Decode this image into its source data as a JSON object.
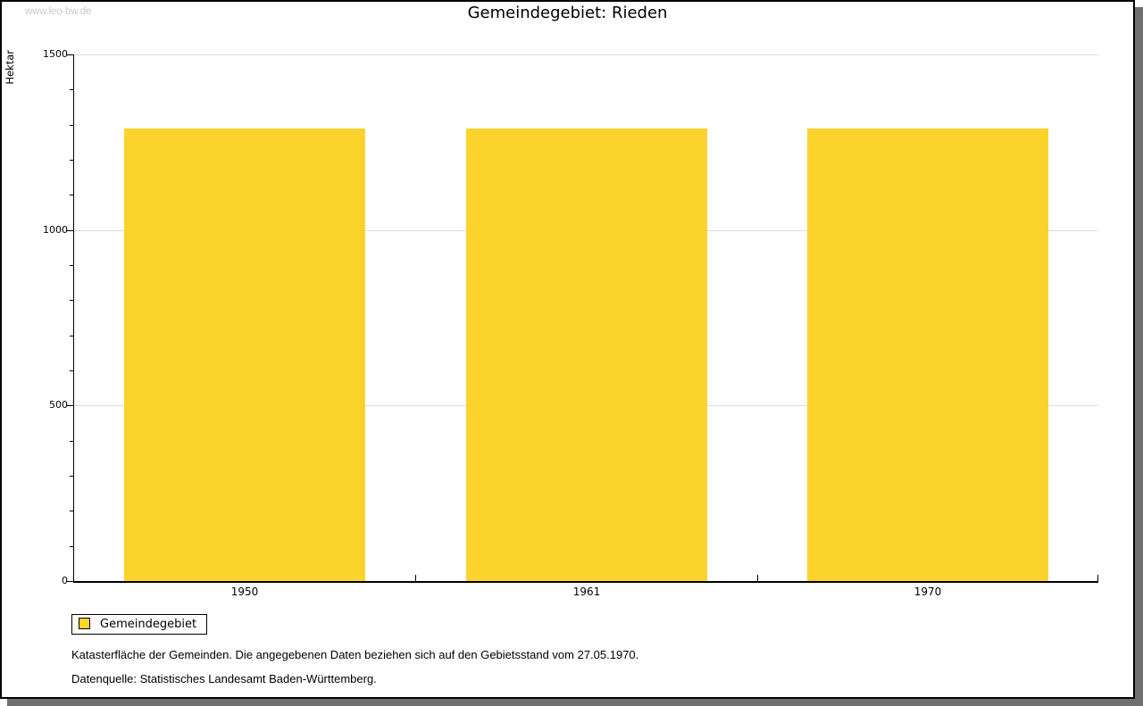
{
  "page": {
    "watermark": "www.leo-bw.de",
    "title": "Gemeindegebiet: Rieden"
  },
  "chart_data": {
    "type": "bar",
    "title": "Gemeindegebiet: Rieden",
    "categories": [
      "1950",
      "1961",
      "1970"
    ],
    "series": [
      {
        "name": "Gemeindegebiet",
        "values": [
          1290,
          1290,
          1290
        ]
      }
    ],
    "xlabel": "",
    "ylabel": "Hektar",
    "ylim": [
      0,
      1500
    ],
    "ytick_major": 500,
    "ytick_minor": 100,
    "grid": "horizontal-major-only",
    "legend_position": "bottom-left",
    "bar_color": "#FCD32C",
    "gridline_color": "#DDDDDD",
    "axis_color": "#000000"
  },
  "legend": {
    "label": "Gemeindegebiet"
  },
  "footnotes": {
    "line1": "Katasterfläche der Gemeinden. Die angegebenen Daten beziehen sich auf den Gebietsstand vom 27.05.1970.",
    "line2": "Datenquelle: Statistisches Landesamt Baden-Württemberg."
  },
  "colors": {
    "page_shadow": "#6F6F6F",
    "watermark": "#CACACA",
    "background": "#FFFFFF"
  }
}
